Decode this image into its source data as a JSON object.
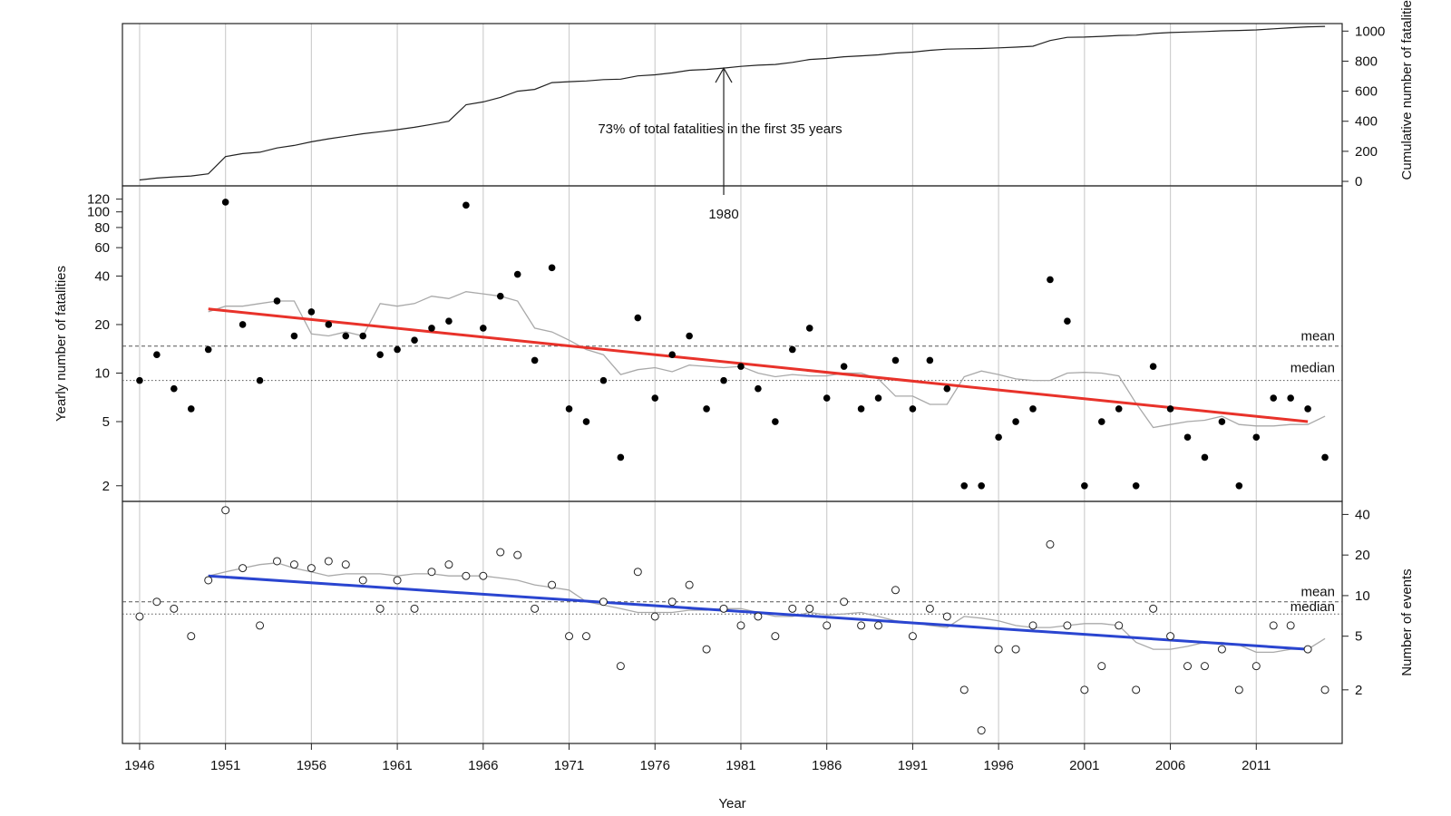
{
  "chart_data": [
    {
      "type": "line",
      "panel": "top",
      "ylabel": "Cumulative number of fatalities",
      "yticks": [
        0,
        200,
        400,
        600,
        800,
        1000
      ],
      "ylim": [
        -30,
        1050
      ],
      "x": [
        1946,
        1947,
        1948,
        1949,
        1950,
        1951,
        1952,
        1953,
        1954,
        1955,
        1956,
        1957,
        1958,
        1959,
        1960,
        1961,
        1962,
        1963,
        1964,
        1965,
        1966,
        1967,
        1968,
        1969,
        1970,
        1971,
        1972,
        1973,
        1974,
        1975,
        1976,
        1977,
        1978,
        1979,
        1980,
        1981,
        1982,
        1983,
        1984,
        1985,
        1986,
        1987,
        1988,
        1989,
        1990,
        1991,
        1992,
        1993,
        1994,
        1995,
        1996,
        1997,
        1998,
        1999,
        2000,
        2001,
        2002,
        2003,
        2004,
        2005,
        2006,
        2007,
        2008,
        2009,
        2010,
        2011,
        2012,
        2013,
        2014,
        2015
      ],
      "values": [
        9,
        22,
        30,
        36,
        50,
        165,
        185,
        194,
        222,
        239,
        263,
        283,
        300,
        317,
        330,
        344,
        360,
        379,
        400,
        510,
        529,
        559,
        600,
        612,
        657,
        663,
        668,
        677,
        680,
        702,
        709,
        722,
        739,
        745,
        754,
        765,
        773,
        778,
        792,
        811,
        818,
        829,
        835,
        842,
        854,
        860,
        872,
        880,
        882,
        884,
        888,
        893,
        899,
        937,
        958,
        960,
        965,
        971,
        973,
        984,
        990,
        994,
        997,
        1002,
        1004,
        1008,
        1015,
        1022,
        1028,
        1031
      ],
      "annotation": {
        "text": "73% of total fatalities in the first 35 years",
        "arrow_year": 1980,
        "arrow_label": "1980"
      }
    },
    {
      "type": "scatter",
      "panel": "middle",
      "ylabel": "Yearly number of fatalities",
      "scale": "log",
      "yticks": [
        2,
        5,
        10,
        20,
        40,
        60,
        80,
        100,
        120
      ],
      "ylim": [
        1.6,
        145
      ],
      "x": [
        1946,
        1947,
        1948,
        1949,
        1950,
        1951,
        1952,
        1953,
        1954,
        1955,
        1956,
        1957,
        1958,
        1959,
        1960,
        1961,
        1962,
        1963,
        1964,
        1965,
        1966,
        1967,
        1968,
        1969,
        1970,
        1971,
        1972,
        1973,
        1974,
        1975,
        1976,
        1977,
        1978,
        1979,
        1980,
        1981,
        1982,
        1983,
        1984,
        1985,
        1986,
        1987,
        1988,
        1989,
        1990,
        1991,
        1992,
        1993,
        1994,
        1995,
        1996,
        1997,
        1998,
        1999,
        2000,
        2001,
        2002,
        2003,
        2004,
        2005,
        2006,
        2007,
        2008,
        2009,
        2010,
        2011,
        2012,
        2013,
        2014,
        2015
      ],
      "values": [
        9,
        13,
        8,
        6,
        14,
        115,
        20,
        9,
        28,
        17,
        24,
        20,
        17,
        17,
        13,
        14,
        16,
        19,
        21,
        110,
        19,
        30,
        41,
        12,
        45,
        6,
        5,
        9,
        3,
        22,
        7,
        13,
        17,
        6,
        9,
        11,
        8,
        5,
        14,
        19,
        7,
        11,
        6,
        7,
        12,
        6,
        12,
        8,
        2,
        2,
        4,
        5,
        6,
        38,
        21,
        2,
        5,
        6,
        2,
        11,
        6,
        4,
        3,
        5,
        2,
        4,
        7,
        7,
        6,
        3
      ],
      "mean": 14.7,
      "median": 9,
      "mean_label": "mean",
      "median_label": "median",
      "trend": {
        "x": [
          1950,
          2014
        ],
        "y": [
          25,
          5
        ]
      },
      "moving_avg_x": [
        1950,
        1951,
        1952,
        1953,
        1954,
        1955,
        1956,
        1957,
        1958,
        1959,
        1960,
        1961,
        1962,
        1963,
        1964,
        1965,
        1966,
        1967,
        1968,
        1969,
        1970,
        1971,
        1972,
        1973,
        1974,
        1975,
        1976,
        1977,
        1978,
        1979,
        1980,
        1981,
        1982,
        1983,
        1984,
        1985,
        1986,
        1987,
        1988,
        1989,
        1990,
        1991,
        1992,
        1993,
        1994,
        1995,
        1996,
        1997,
        1998,
        1999,
        2000,
        2001,
        2002,
        2003,
        2004,
        2005,
        2006,
        2007,
        2008,
        2009,
        2010,
        2011,
        2012,
        2013,
        2014,
        2015
      ],
      "moving_avg": [
        24,
        26,
        26,
        27,
        28,
        28,
        17.5,
        17,
        18,
        17,
        27,
        26,
        27,
        30,
        29,
        32,
        31,
        30,
        28,
        19,
        18,
        16,
        14,
        13,
        9.8,
        10.5,
        10.8,
        10.2,
        11.2,
        11,
        10.8,
        11,
        10,
        9.5,
        9.8,
        9.6,
        9.6,
        10,
        10,
        9.2,
        7.2,
        7.2,
        6.4,
        6.4,
        9.5,
        10.3,
        9.8,
        9.2,
        9,
        9,
        10,
        10.1,
        10,
        9.6,
        6.5,
        4.6,
        4.8,
        5,
        5.1,
        5.4,
        4.8,
        4.7,
        4.7,
        4.8,
        4.8,
        5.4
      ]
    },
    {
      "type": "scatter",
      "panel": "bottom",
      "ylabel": "Number of events",
      "xlabel": "Year",
      "scale": "log",
      "yticks": [
        2,
        5,
        10,
        20,
        40
      ],
      "ylim": [
        0.8,
        50
      ],
      "xticks": [
        1946,
        1951,
        1956,
        1961,
        1966,
        1971,
        1976,
        1981,
        1986,
        1991,
        1996,
        2001,
        2006,
        2011
      ],
      "xlim": [
        1945,
        2016
      ],
      "x": [
        1946,
        1947,
        1948,
        1949,
        1950,
        1951,
        1952,
        1953,
        1954,
        1955,
        1956,
        1957,
        1958,
        1959,
        1960,
        1961,
        1962,
        1963,
        1964,
        1965,
        1966,
        1967,
        1968,
        1969,
        1970,
        1971,
        1972,
        1973,
        1974,
        1975,
        1976,
        1977,
        1978,
        1979,
        1980,
        1981,
        1982,
        1983,
        1984,
        1985,
        1986,
        1987,
        1988,
        1989,
        1990,
        1991,
        1992,
        1993,
        1994,
        1995,
        1996,
        1997,
        1998,
        1999,
        2000,
        2001,
        2002,
        2003,
        2004,
        2005,
        2006,
        2007,
        2008,
        2009,
        2010,
        2011,
        2012,
        2013,
        2014,
        2015
      ],
      "values": [
        7,
        9,
        8,
        5,
        13,
        43,
        16,
        6,
        18,
        17,
        16,
        18,
        17,
        13,
        8,
        13,
        8,
        15,
        17,
        14,
        14,
        21,
        20,
        8,
        12,
        5,
        5,
        9,
        3,
        15,
        7,
        9,
        12,
        4,
        8,
        6,
        7,
        5,
        8,
        8,
        6,
        9,
        6,
        6,
        11,
        5,
        8,
        7,
        2,
        1,
        4,
        4,
        6,
        24,
        6,
        2,
        3,
        6,
        2,
        8,
        5,
        3,
        3,
        4,
        2,
        3,
        6,
        6,
        4,
        2
      ],
      "mean": 9,
      "median": 7.3,
      "mean_label": "mean",
      "median_label": "median",
      "trend": {
        "x": [
          1950,
          2014
        ],
        "y": [
          14,
          4
        ]
      },
      "moving_avg_x": [
        1950,
        1951,
        1952,
        1953,
        1954,
        1955,
        1956,
        1957,
        1958,
        1959,
        1960,
        1961,
        1962,
        1963,
        1964,
        1965,
        1966,
        1967,
        1968,
        1969,
        1970,
        1971,
        1972,
        1973,
        1974,
        1975,
        1976,
        1977,
        1978,
        1979,
        1980,
        1981,
        1982,
        1983,
        1984,
        1985,
        1986,
        1987,
        1988,
        1989,
        1990,
        1991,
        1992,
        1993,
        1994,
        1995,
        1996,
        1997,
        1998,
        1999,
        2000,
        2001,
        2002,
        2003,
        2004,
        2005,
        2006,
        2007,
        2008,
        2009,
        2010,
        2011,
        2012,
        2013,
        2014,
        2015
      ],
      "moving_avg": [
        14,
        15,
        16,
        17,
        17.5,
        16,
        15,
        14,
        14.5,
        14.5,
        14.5,
        14,
        14.5,
        14.5,
        14,
        14,
        14,
        13.5,
        13,
        12,
        11.5,
        11,
        9,
        8.5,
        8,
        7.5,
        7.5,
        7.5,
        7.8,
        7.8,
        8,
        8,
        7.5,
        7,
        7,
        7.5,
        7.2,
        7.3,
        7.5,
        7,
        6.5,
        6.3,
        6,
        5.8,
        7,
        6.8,
        6.5,
        6,
        5.8,
        5.8,
        6,
        6.2,
        6.2,
        6,
        4.5,
        4,
        4,
        4.2,
        4.5,
        4.5,
        4.3,
        3.8,
        3.8,
        4,
        4,
        4.8
      ]
    }
  ]
}
